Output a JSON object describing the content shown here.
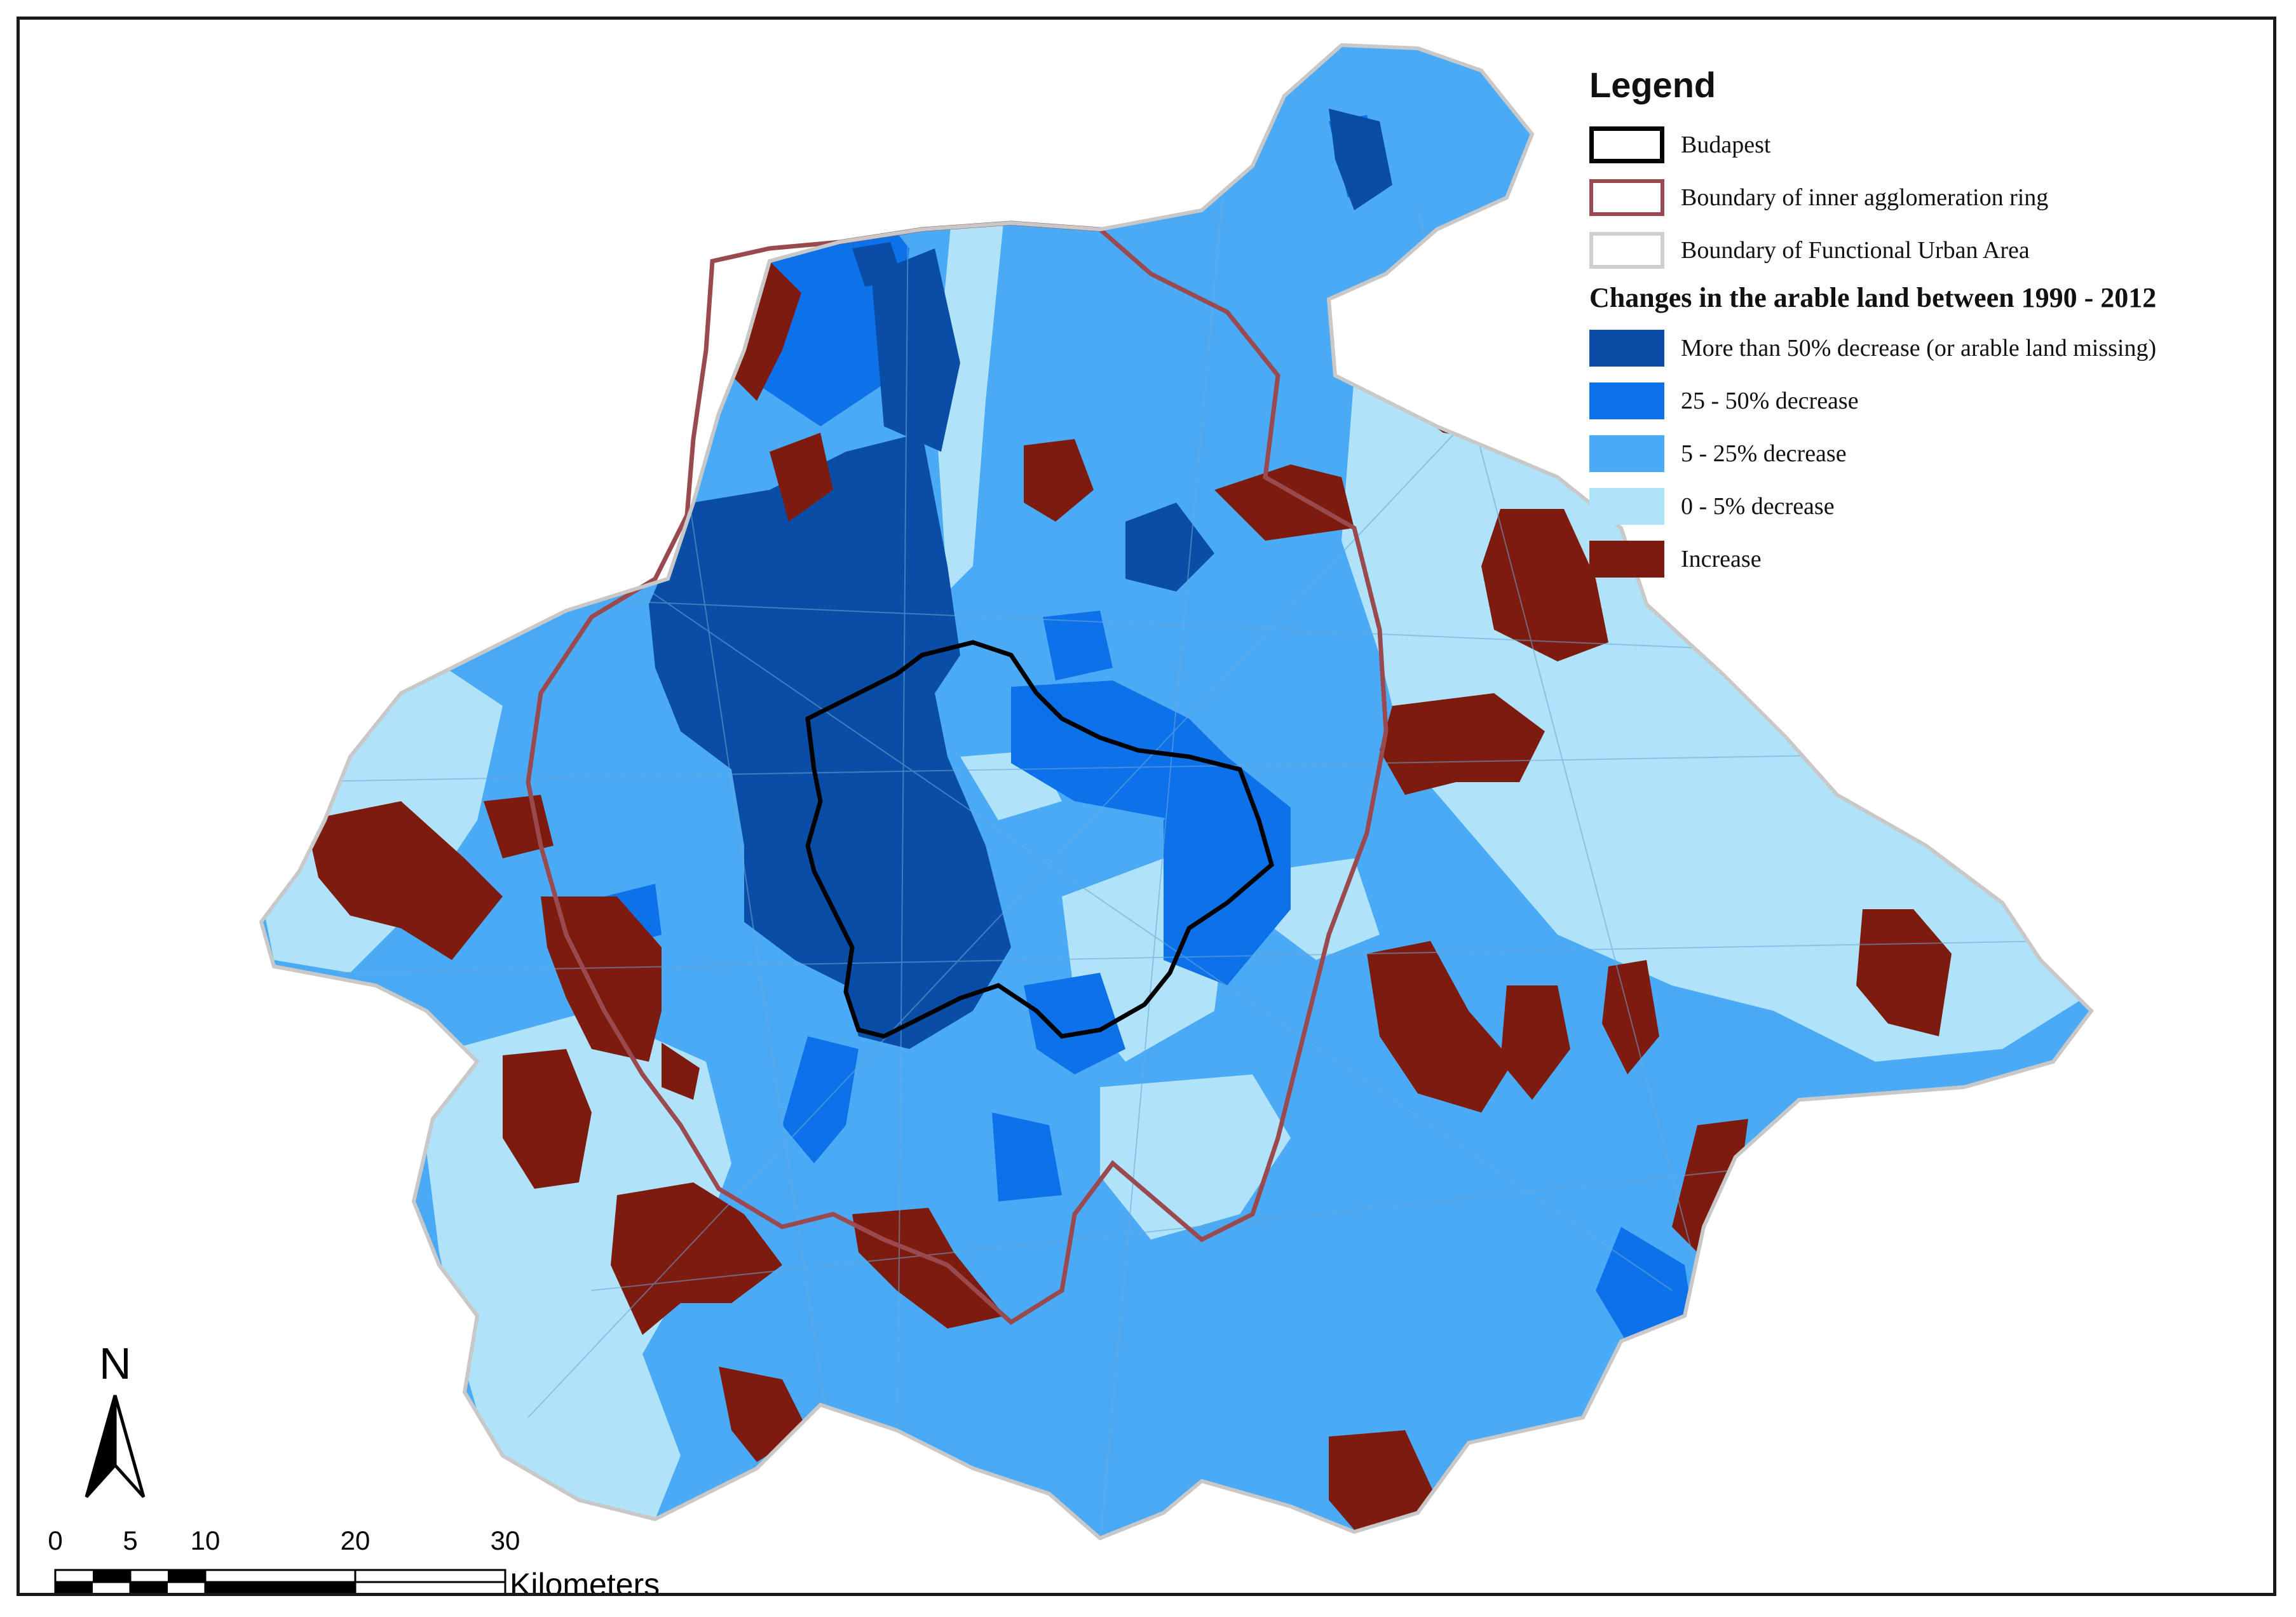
{
  "legend": {
    "title": "Legend",
    "boundaries": [
      {
        "key": "budapest",
        "label": "Budapest"
      },
      {
        "key": "inner",
        "label": "Boundary of inner agglomeration ring"
      },
      {
        "key": "fua",
        "label": "Boundary of Functional Urban Area"
      }
    ],
    "changes_title": "Changes in the arable land between 1990 - 2012",
    "classes": [
      {
        "key": "c1",
        "label": "More than 50% decrease (or arable land missing)",
        "color": "#0a4da6"
      },
      {
        "key": "c2",
        "label": "25 - 50% decrease",
        "color": "#0d72ea"
      },
      {
        "key": "c3",
        "label": "5 - 25% decrease",
        "color": "#4aaaf6"
      },
      {
        "key": "c4",
        "label": "0 - 5% decrease",
        "color": "#b0e3f9"
      },
      {
        "key": "c5",
        "label": "Increase",
        "color": "#7d1c0e"
      }
    ]
  },
  "boundary_colors": {
    "budapest": "#000000",
    "inner": "#9a4a4e",
    "fua": "#c8c8c8"
  },
  "north_arrow": {
    "label": "N"
  },
  "scale_bar": {
    "ticks": [
      "0",
      "5",
      "10",
      "20",
      "30"
    ],
    "units": "Kilometers"
  }
}
